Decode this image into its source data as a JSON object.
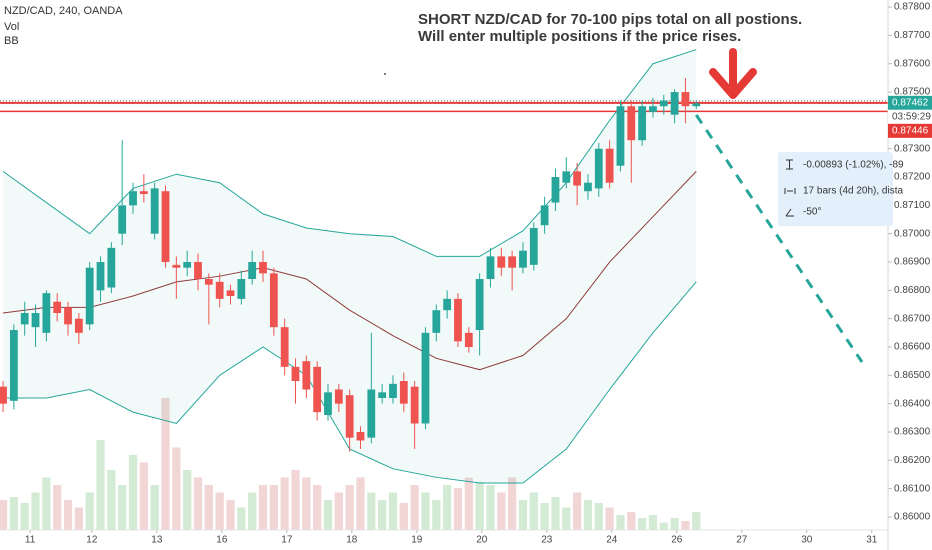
{
  "chart_data": {
    "type": "candlestick",
    "title": "NZD/CAD, 240, OANDA",
    "indicators": [
      "Vol",
      "BB"
    ],
    "annotation": [
      "SHORT NZD/CAD for 70-100 pips total on all postions.",
      "Will enter multiple positions if the price rises."
    ],
    "x": [
      0,
      1,
      2,
      3,
      4,
      5,
      6,
      7,
      8,
      9,
      10,
      11,
      12,
      13,
      14,
      15,
      16,
      17,
      18,
      19,
      20,
      21,
      22,
      23,
      24,
      25,
      26,
      27,
      28,
      29,
      30,
      31,
      32,
      33,
      34,
      35,
      36,
      37,
      38,
      39,
      40,
      41,
      42,
      43,
      44,
      45,
      46,
      47,
      48,
      49,
      50,
      51,
      52,
      53,
      54,
      55,
      56,
      57,
      58,
      59,
      60,
      61,
      62,
      63,
      64
    ],
    "open": [
      0.8646,
      0.8641,
      0.8668,
      0.8667,
      0.8665,
      0.8676,
      0.8674,
      0.867,
      0.8668,
      0.868,
      0.8681,
      0.87,
      0.871,
      0.8715,
      0.87,
      0.8715,
      0.8689,
      0.8688,
      0.869,
      0.8684,
      0.8683,
      0.868,
      0.8677,
      0.8684,
      0.869,
      0.8686,
      0.8667,
      0.8653,
      0.8655,
      0.8653,
      0.8636,
      0.8645,
      0.8643,
      0.863,
      0.8628,
      0.8642,
      0.8642,
      0.8648,
      0.8646,
      0.8633,
      0.8665,
      0.8673,
      0.8677,
      0.8665,
      0.8666,
      0.8684,
      0.8692,
      0.8692,
      0.8688,
      0.8689,
      0.8703,
      0.8711,
      0.8718,
      0.8722,
      0.8715,
      0.8716,
      0.873,
      0.8724,
      0.8745,
      0.8733,
      0.8743,
      0.8745,
      0.8742,
      0.875,
      0.8745
    ],
    "high": [
      0.8648,
      0.8668,
      0.8676,
      0.8675,
      0.868,
      0.8679,
      0.8676,
      0.8672,
      0.869,
      0.8692,
      0.8697,
      0.8733,
      0.8718,
      0.8721,
      0.8718,
      0.8717,
      0.8692,
      0.8694,
      0.8693,
      0.8686,
      0.8686,
      0.8682,
      0.8687,
      0.8694,
      0.8694,
      0.8688,
      0.867,
      0.8656,
      0.8657,
      0.8655,
      0.8647,
      0.8647,
      0.8645,
      0.8632,
      0.8665,
      0.8647,
      0.865,
      0.8651,
      0.8648,
      0.8667,
      0.8675,
      0.868,
      0.8679,
      0.8667,
      0.8686,
      0.8695,
      0.8695,
      0.8694,
      0.8697,
      0.8704,
      0.8713,
      0.8723,
      0.8727,
      0.8725,
      0.8721,
      0.8732,
      0.8733,
      0.8747,
      0.8747,
      0.8747,
      0.8748,
      0.8749,
      0.8751,
      0.8755,
      0.8747
    ],
    "low": [
      0.8637,
      0.8638,
      0.8664,
      0.866,
      0.8662,
      0.8669,
      0.8664,
      0.8661,
      0.8666,
      0.8676,
      0.8679,
      0.8696,
      0.8707,
      0.8711,
      0.8698,
      0.8688,
      0.8677,
      0.8685,
      0.868,
      0.8668,
      0.8674,
      0.8675,
      0.8675,
      0.8682,
      0.8683,
      0.8664,
      0.865,
      0.864,
      0.8642,
      0.8634,
      0.8634,
      0.8637,
      0.8623,
      0.8624,
      0.8626,
      0.864,
      0.864,
      0.8637,
      0.8624,
      0.8631,
      0.8662,
      0.867,
      0.866,
      0.8658,
      0.8657,
      0.8681,
      0.8685,
      0.868,
      0.8686,
      0.8687,
      0.87,
      0.8708,
      0.8716,
      0.871,
      0.8712,
      0.8713,
      0.8716,
      0.8722,
      0.8718,
      0.8731,
      0.8741,
      0.8742,
      0.8739,
      0.8739,
      0.8744
    ],
    "close": [
      0.864,
      0.8666,
      0.8672,
      0.8672,
      0.8679,
      0.8672,
      0.8668,
      0.8665,
      0.8688,
      0.869,
      0.8695,
      0.871,
      0.8715,
      0.8714,
      0.8716,
      0.869,
      0.8688,
      0.869,
      0.8684,
      0.8682,
      0.8677,
      0.8678,
      0.8684,
      0.869,
      0.8686,
      0.8667,
      0.8653,
      0.8648,
      0.8645,
      0.8637,
      0.8644,
      0.864,
      0.8628,
      0.8627,
      0.8645,
      0.8644,
      0.8647,
      0.864,
      0.8633,
      0.8665,
      0.8673,
      0.8677,
      0.8662,
      0.866,
      0.8684,
      0.8692,
      0.8688,
      0.8688,
      0.8694,
      0.8702,
      0.871,
      0.872,
      0.8722,
      0.8717,
      0.8718,
      0.873,
      0.8718,
      0.8745,
      0.8733,
      0.8745,
      0.8745,
      0.8747,
      0.875,
      0.8745,
      0.8746
    ],
    "up_color": "#26a69a",
    "down_color": "#ef5350",
    "volume": {
      "values": [
        20,
        22,
        18,
        25,
        35,
        30,
        20,
        15,
        25,
        60,
        40,
        30,
        50,
        45,
        30,
        88,
        55,
        40,
        35,
        30,
        25,
        20,
        15,
        25,
        30,
        30,
        35,
        40,
        35,
        30,
        20,
        25,
        30,
        35,
        25,
        20,
        25,
        18,
        30,
        25,
        20,
        30,
        28,
        35,
        32,
        30,
        25,
        35,
        20,
        25,
        18,
        22,
        15,
        25,
        20,
        18,
        15,
        10,
        12,
        8,
        10,
        5,
        8,
        6,
        12
      ],
      "vlim": [
        0,
        100
      ],
      "up_color": "#d3ead5",
      "down_color": "#f2d6d6"
    },
    "bollinger": {
      "x": [
        0,
        4,
        8,
        12,
        16,
        20,
        24,
        28,
        32,
        36,
        40,
        44,
        48,
        52,
        56,
        60,
        64
      ],
      "upper": [
        0.8722,
        0.8711,
        0.87,
        0.8716,
        0.8721,
        0.8718,
        0.8707,
        0.8702,
        0.87,
        0.8699,
        0.8692,
        0.8692,
        0.8701,
        0.8718,
        0.874,
        0.876,
        0.8765
      ],
      "middle": [
        0.8672,
        0.8674,
        0.8674,
        0.8678,
        0.8683,
        0.8685,
        0.8688,
        0.8684,
        0.8673,
        0.8664,
        0.8656,
        0.8652,
        0.8657,
        0.867,
        0.869,
        0.8706,
        0.8722
      ],
      "lower": [
        0.8642,
        0.8642,
        0.8645,
        0.8637,
        0.8633,
        0.865,
        0.866,
        0.865,
        0.8624,
        0.8617,
        0.8614,
        0.8612,
        0.8612,
        0.8624,
        0.8645,
        0.8665,
        0.8683
      ],
      "color": "#26a69a",
      "middle_color": "#8e3b3b"
    },
    "last_price": 0.87462,
    "countdown": "03:59:29",
    "line_price": 0.87446,
    "line_color": "#e53935",
    "trend_line": {
      "x": [
        64,
        79.3
      ],
      "y": [
        0.87419,
        0.86547
      ],
      "color": "#26a69a"
    },
    "measure": [
      "-0.00893 (-1.02%), -89",
      "17 bars (4d 20h), dista",
      "-50°"
    ],
    "xlim": [
      -0.28,
      81.7
    ],
    "ylim": [
      0.85954,
      0.87825
    ],
    "xticks": [
      {
        "value": 2.5,
        "label": "11"
      },
      {
        "value": 8.2,
        "label": "12"
      },
      {
        "value": 14.2,
        "label": "13"
      },
      {
        "value": 20.2,
        "label": "16"
      },
      {
        "value": 26.2,
        "label": "17"
      },
      {
        "value": 32.2,
        "label": "18"
      },
      {
        "value": 38.2,
        "label": "19"
      },
      {
        "value": 44.2,
        "label": "20"
      },
      {
        "value": 50.2,
        "label": "23"
      },
      {
        "value": 56.2,
        "label": "24"
      },
      {
        "value": 62.2,
        "label": "26"
      },
      {
        "value": 68.2,
        "label": "27"
      },
      {
        "value": 74.2,
        "label": "30"
      },
      {
        "value": 80.2,
        "label": "31"
      }
    ],
    "yticks": [
      {
        "value": 0.878,
        "label": "0.87800"
      },
      {
        "value": 0.877,
        "label": "0.87700"
      },
      {
        "value": 0.876,
        "label": "0.87600"
      },
      {
        "value": 0.875,
        "label": "0.87500"
      },
      {
        "value": 0.873,
        "label": "0.87300"
      },
      {
        "value": 0.872,
        "label": "0.87200"
      },
      {
        "value": 0.871,
        "label": "0.87100"
      },
      {
        "value": 0.87,
        "label": "0.87000"
      },
      {
        "value": 0.869,
        "label": "0.86900"
      },
      {
        "value": 0.868,
        "label": "0.86800"
      },
      {
        "value": 0.867,
        "label": "0.86700"
      },
      {
        "value": 0.866,
        "label": "0.86600"
      },
      {
        "value": 0.865,
        "label": "0.86500"
      },
      {
        "value": 0.864,
        "label": "0.86400"
      },
      {
        "value": 0.863,
        "label": "0.86300"
      },
      {
        "value": 0.862,
        "label": "0.86200"
      },
      {
        "value": 0.861,
        "label": "0.86100"
      },
      {
        "value": 0.86,
        "label": "0.86000"
      }
    ],
    "grid": false
  }
}
